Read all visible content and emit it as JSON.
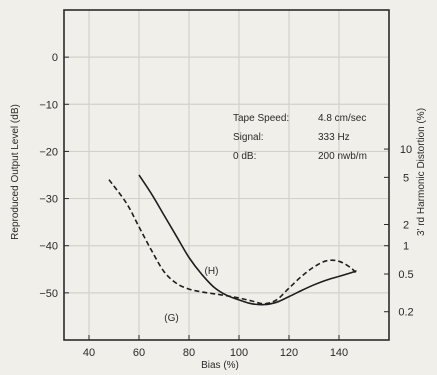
{
  "chart_data": {
    "type": "line",
    "xlabel": "Bias (%)",
    "ylabel": "Reproduced Output Level (dB)",
    "y2label": "3' rd Harmonic Distortion (%)",
    "xlim": [
      30,
      160
    ],
    "ylim": [
      -60,
      10
    ],
    "x_ticks": [
      40,
      60,
      80,
      100,
      120,
      140
    ],
    "y_ticks": [
      0,
      -10,
      -20,
      -30,
      -40,
      -50
    ],
    "y_tick_labels": [
      "0",
      "−10",
      "−20",
      "−30",
      "−40",
      "−50"
    ],
    "y2_ticks": [
      {
        "label": "10",
        "level": -19.5
      },
      {
        "label": "5",
        "level": -25.5
      },
      {
        "label": "2",
        "level": -35.5
      },
      {
        "label": "1",
        "level": -40.0
      },
      {
        "label": "0.5",
        "level": -46.0
      },
      {
        "label": "0.2",
        "level": -54.0
      }
    ],
    "grid": true,
    "series": [
      {
        "name": "(H)",
        "style": "solid",
        "x": [
          60,
          65,
          70,
          75,
          80,
          85,
          90,
          95,
          100,
          105,
          110,
          115,
          120,
          125,
          130,
          135,
          140,
          145,
          147
        ],
        "y": [
          -25,
          -29,
          -33.5,
          -38,
          -42.5,
          -46,
          -48.8,
          -50.5,
          -51.5,
          -52.3,
          -52.5,
          -52,
          -50.8,
          -49.5,
          -48.3,
          -47.3,
          -46.5,
          -45.7,
          -45.3
        ]
      },
      {
        "name": "(G)",
        "style": "dashed",
        "x": [
          48,
          55,
          60,
          65,
          70,
          75,
          80,
          85,
          90,
          95,
          100,
          105,
          110,
          115,
          120,
          125,
          130,
          135,
          140,
          145,
          147
        ],
        "y": [
          -26,
          -31,
          -36,
          -41,
          -45.5,
          -48,
          -49.2,
          -49.8,
          -50.2,
          -50.6,
          -51.1,
          -51.7,
          -52.3,
          -51.5,
          -49,
          -46.5,
          -44.5,
          -43.2,
          -43.3,
          -44.8,
          -46
        ]
      }
    ],
    "annotations": [
      {
        "text": "(H)",
        "x": 89,
        "y": -46
      },
      {
        "text": "(G)",
        "x": 73,
        "y": -56
      }
    ],
    "info_box": {
      "rows": [
        {
          "label": "Tape Speed:",
          "value": "4.8 cm/sec"
        },
        {
          "label": "Signal:",
          "value": "333 Hz"
        },
        {
          "label": "0 dB:",
          "value": "200 nwb/m"
        }
      ]
    }
  }
}
